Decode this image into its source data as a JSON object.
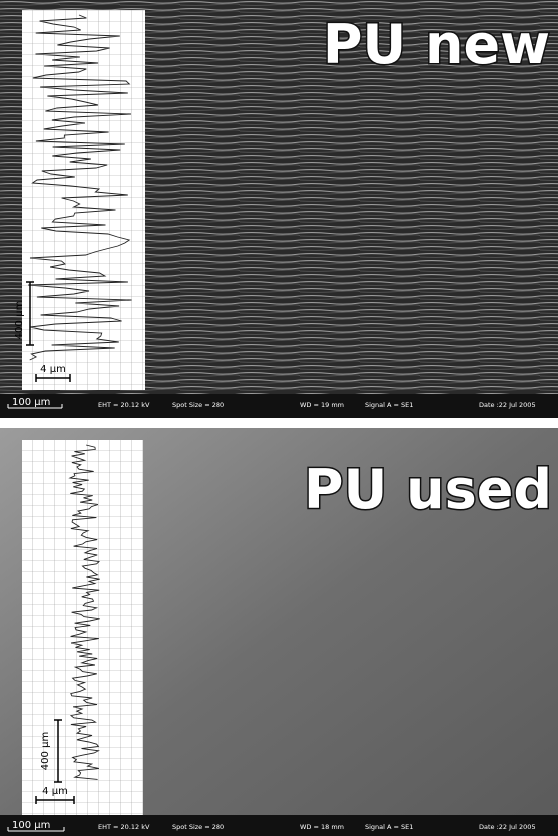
{
  "panels": [
    {
      "title": "PU new",
      "scale_y": "400 µm",
      "scale_x": "4 µm",
      "scale_bar": "100 µm",
      "info": [
        "EHT = 20.12 kV",
        "Spot Size = 280",
        "WD =  19 mm",
        "Signal A = SE1",
        "Date :22 Jul 2005"
      ]
    },
    {
      "title": "PU used",
      "scale_y": "400 µm",
      "scale_x": "4 µm",
      "scale_bar": "100 µm",
      "info": [
        "EHT = 20.12 kV",
        "Spot Size = 280",
        "WD =  18 mm",
        "Signal A = SE1",
        "Date :22 Jul 2005"
      ]
    }
  ]
}
